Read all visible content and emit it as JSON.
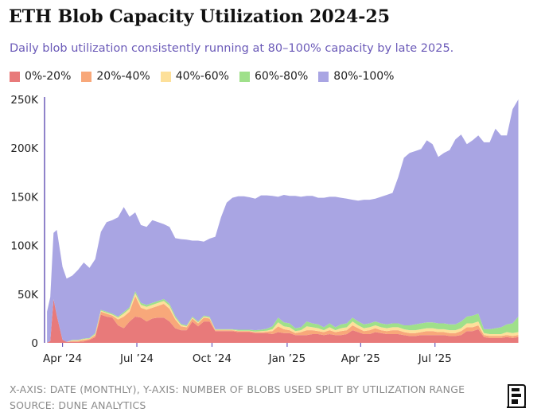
{
  "title": "ETH Blob Capacity Utilization 2024-25",
  "subtitle": "Daily blob utilization consistently running at 80–100% capacity by late 2025.",
  "footer": {
    "axes_note": "X-AXIS: DATE (MONTHLY), Y-AXIS: NUMBER OF BLOBS USED SPLIT BY UTILIZATION RANGE",
    "source": "SOURCE: DUNE ANALYTICS"
  },
  "logo_icon": "the-block-logo-icon",
  "colors": {
    "title": "#111111",
    "subtitle": "#6b5ab8",
    "axis": "#6b5ab8"
  },
  "chart_data": {
    "type": "area",
    "stacked": true,
    "title": "ETH Blob Capacity Utilization 2024-25",
    "xlabel": "Date (monthly)",
    "ylabel": "Number of blobs used split by utilization range",
    "ylim": [
      0,
      250000
    ],
    "yticks": [
      0,
      50000,
      100000,
      150000,
      200000,
      250000
    ],
    "ytick_labels": [
      "0",
      "50K",
      "100K",
      "150K",
      "200K",
      "250K"
    ],
    "x_range": [
      "2024-03-10",
      "2025-10-31"
    ],
    "xticks": [
      "2024-04-01",
      "2024-07-01",
      "2024-10-01",
      "2025-01-01",
      "2025-04-01",
      "2025-07-01"
    ],
    "xtick_labels": [
      "Apr ’24",
      "Jul ’24",
      "Oct ’24",
      "Jan ’25",
      "Apr ’25",
      "Jul ’25"
    ],
    "legend_position": "top-left",
    "x": [
      "2024-03-13",
      "2024-03-17",
      "2024-03-21",
      "2024-03-25",
      "2024-04-01",
      "2024-04-06",
      "2024-04-13",
      "2024-04-20",
      "2024-04-27",
      "2024-05-04",
      "2024-05-11",
      "2024-05-18",
      "2024-05-25",
      "2024-06-01",
      "2024-06-08",
      "2024-06-15",
      "2024-06-22",
      "2024-06-29",
      "2024-07-06",
      "2024-07-13",
      "2024-07-20",
      "2024-07-27",
      "2024-08-03",
      "2024-08-10",
      "2024-08-17",
      "2024-08-24",
      "2024-08-31",
      "2024-09-07",
      "2024-09-14",
      "2024-09-21",
      "2024-09-28",
      "2024-10-05",
      "2024-10-12",
      "2024-10-19",
      "2024-10-26",
      "2024-11-02",
      "2024-11-09",
      "2024-11-16",
      "2024-11-23",
      "2024-11-30",
      "2024-12-07",
      "2024-12-14",
      "2024-12-21",
      "2024-12-28",
      "2025-01-04",
      "2025-01-11",
      "2025-01-18",
      "2025-01-25",
      "2025-02-01",
      "2025-02-08",
      "2025-02-15",
      "2025-02-22",
      "2025-03-01",
      "2025-03-08",
      "2025-03-15",
      "2025-03-22",
      "2025-03-29",
      "2025-04-05",
      "2025-04-12",
      "2025-04-19",
      "2025-04-26",
      "2025-05-03",
      "2025-05-10",
      "2025-05-17",
      "2025-05-24",
      "2025-05-31",
      "2025-06-07",
      "2025-06-14",
      "2025-06-21",
      "2025-06-28",
      "2025-07-05",
      "2025-07-12",
      "2025-07-19",
      "2025-07-26",
      "2025-08-02",
      "2025-08-09",
      "2025-08-16",
      "2025-08-23",
      "2025-08-30",
      "2025-09-06",
      "2025-09-13",
      "2025-09-20",
      "2025-09-27",
      "2025-10-04",
      "2025-10-11"
    ],
    "series": [
      {
        "name": "0%-20%",
        "color": "#e87a7a",
        "values": [
          0,
          2000,
          45000,
          28000,
          3000,
          1000,
          1000,
          1000,
          1500,
          3000,
          6000,
          29000,
          27000,
          26000,
          18000,
          15000,
          22000,
          27000,
          26000,
          22000,
          25000,
          26000,
          26000,
          22000,
          15000,
          13000,
          13000,
          22000,
          17000,
          22000,
          22000,
          12000,
          12000,
          12000,
          12000,
          11000,
          11000,
          11000,
          10000,
          10000,
          10000,
          9000,
          11000,
          10000,
          10000,
          8000,
          8000,
          8000,
          9000,
          9000,
          8000,
          9000,
          8000,
          8000,
          9000,
          13000,
          11000,
          9000,
          9000,
          11000,
          10000,
          9000,
          9000,
          9000,
          8000,
          7000,
          7000,
          8000,
          8000,
          8000,
          8000,
          8000,
          7000,
          7000,
          8000,
          12000,
          12000,
          14000,
          6000,
          5000,
          5000,
          5000,
          6000,
          5000,
          6000
        ]
      },
      {
        "name": "20%-40%",
        "color": "#f8a87a",
        "values": [
          0,
          0,
          0,
          0,
          0,
          0,
          1000,
          1000,
          1500,
          1000,
          2000,
          3000,
          3000,
          2000,
          6000,
          12000,
          10000,
          21000,
          10000,
          12000,
          11000,
          12000,
          14000,
          13000,
          9000,
          4000,
          3000,
          3000,
          3000,
          4000,
          3000,
          1000,
          1000,
          1000,
          1000,
          1000,
          1000,
          1000,
          1000,
          1000,
          1500,
          3000,
          6000,
          4000,
          3000,
          2000,
          3000,
          5000,
          4000,
          3000,
          3000,
          4000,
          3000,
          4000,
          4000,
          5000,
          4000,
          3000,
          4000,
          4000,
          3000,
          3000,
          4000,
          4000,
          3000,
          3000,
          3000,
          3000,
          4000,
          4000,
          3000,
          3000,
          3000,
          3000,
          4000,
          4000,
          4000,
          4000,
          2000,
          2000,
          2000,
          2000,
          2000,
          2000,
          2000
        ]
      },
      {
        "name": "40%-60%",
        "color": "#fde09a",
        "values": [
          0,
          0,
          0,
          0,
          0,
          0,
          500,
          500,
          1000,
          500,
          1000,
          1000,
          1000,
          1000,
          2000,
          3000,
          3000,
          3000,
          3000,
          3000,
          3000,
          3000,
          3000,
          3000,
          2000,
          1500,
          1000,
          1000,
          1000,
          1000,
          1000,
          500,
          500,
          500,
          500,
          500,
          500,
          500,
          500,
          1000,
          1000,
          2000,
          4000,
          3000,
          3000,
          2000,
          2000,
          4000,
          3000,
          3000,
          2000,
          3000,
          2000,
          3000,
          3000,
          4000,
          3000,
          3000,
          3000,
          3000,
          3000,
          3000,
          3000,
          3000,
          3000,
          3000,
          3000,
          3000,
          3000,
          3000,
          3000,
          3000,
          3000,
          3000,
          3000,
          4000,
          4000,
          4000,
          2000,
          2000,
          2000,
          2000,
          3000,
          3000,
          3000
        ]
      },
      {
        "name": "60%-80%",
        "color": "#9fe08a",
        "values": [
          0,
          0,
          0,
          0,
          0,
          0,
          500,
          500,
          500,
          500,
          1000,
          1000,
          1000,
          1000,
          1000,
          1500,
          1500,
          2000,
          2000,
          2000,
          2000,
          2000,
          2000,
          2000,
          1500,
          1000,
          1000,
          1000,
          1000,
          1000,
          1000,
          500,
          500,
          500,
          500,
          1000,
          1000,
          1000,
          1500,
          1500,
          2000,
          3000,
          5000,
          4000,
          4000,
          3000,
          3000,
          5000,
          4000,
          4000,
          3000,
          4000,
          3000,
          4000,
          4000,
          4000,
          4000,
          4000,
          4000,
          4000,
          4000,
          4000,
          4000,
          4000,
          4000,
          5000,
          6000,
          6000,
          6000,
          6000,
          6000,
          6000,
          6000,
          6000,
          7000,
          7000,
          8000,
          8000,
          4000,
          5000,
          6000,
          7000,
          8000,
          10000,
          16000
        ]
      },
      {
        "name": "80%-100%",
        "color": "#a9a5e3",
        "values": [
          32000,
          45000,
          68000,
          88000,
          75000,
          65000,
          66000,
          72000,
          78000,
          72000,
          76000,
          80000,
          92000,
          96000,
          102000,
          108000,
          93000,
          81000,
          80000,
          80000,
          85000,
          81000,
          77000,
          79000,
          80000,
          87000,
          88000,
          78000,
          83000,
          76000,
          80000,
          95000,
          115000,
          130000,
          135000,
          137000,
          137000,
          136000,
          135000,
          138000,
          137000,
          134000,
          124000,
          131000,
          131000,
          136000,
          134000,
          129000,
          131000,
          130000,
          133000,
          130000,
          134000,
          130000,
          128000,
          121000,
          124000,
          128000,
          127000,
          126000,
          130000,
          133000,
          134000,
          150000,
          172000,
          177000,
          178000,
          179000,
          187000,
          183000,
          171000,
          175000,
          179000,
          190000,
          192000,
          177000,
          180000,
          183000,
          192000,
          192000,
          205000,
          197000,
          194000,
          220000,
          223000
        ]
      }
    ]
  }
}
